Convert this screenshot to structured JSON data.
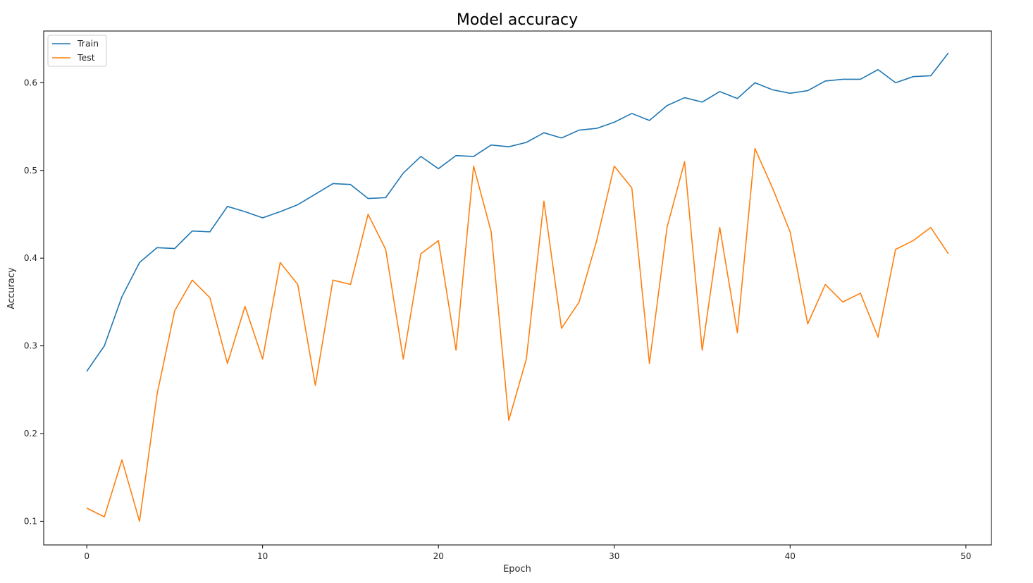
{
  "chart_data": {
    "type": "line",
    "title": "Model accuracy",
    "xlabel": "Epoch",
    "ylabel": "Accuracy",
    "xlim": [
      -2.45,
      51.45
    ],
    "ylim": [
      0.073,
      0.659
    ],
    "xticks": [
      0,
      10,
      20,
      30,
      40,
      50
    ],
    "yticks": [
      0.1,
      0.2,
      0.3,
      0.4,
      0.5,
      0.6
    ],
    "grid": false,
    "legend_position": "top-left",
    "x": [
      0,
      1,
      2,
      3,
      4,
      5,
      6,
      7,
      8,
      9,
      10,
      11,
      12,
      13,
      14,
      15,
      16,
      17,
      18,
      19,
      20,
      21,
      22,
      23,
      24,
      25,
      26,
      27,
      28,
      29,
      30,
      31,
      32,
      33,
      34,
      35,
      36,
      37,
      38,
      39,
      40,
      41,
      42,
      43,
      44,
      45,
      46,
      47,
      48,
      49
    ],
    "series": [
      {
        "name": "Train",
        "color": "#1f77b4",
        "values": [
          0.271,
          0.3,
          0.356,
          0.395,
          0.412,
          0.411,
          0.431,
          0.43,
          0.459,
          0.453,
          0.446,
          0.453,
          0.461,
          0.473,
          0.485,
          0.484,
          0.468,
          0.469,
          0.497,
          0.516,
          0.502,
          0.517,
          0.516,
          0.529,
          0.527,
          0.532,
          0.543,
          0.537,
          0.546,
          0.548,
          0.555,
          0.565,
          0.557,
          0.574,
          0.583,
          0.578,
          0.59,
          0.582,
          0.6,
          0.592,
          0.588,
          0.591,
          0.602,
          0.604,
          0.604,
          0.615,
          0.6,
          0.607,
          0.608,
          0.634
        ]
      },
      {
        "name": "Test",
        "color": "#ff7f0e",
        "values": [
          0.115,
          0.105,
          0.17,
          0.1,
          0.245,
          0.34,
          0.375,
          0.355,
          0.28,
          0.345,
          0.285,
          0.395,
          0.37,
          0.255,
          0.375,
          0.37,
          0.45,
          0.41,
          0.285,
          0.405,
          0.42,
          0.295,
          0.505,
          0.43,
          0.215,
          0.285,
          0.465,
          0.32,
          0.35,
          0.42,
          0.505,
          0.48,
          0.28,
          0.435,
          0.51,
          0.295,
          0.435,
          0.315,
          0.525,
          0.48,
          0.43,
          0.325,
          0.37,
          0.35,
          0.36,
          0.31,
          0.41,
          0.42,
          0.435,
          0.405
        ]
      }
    ]
  }
}
